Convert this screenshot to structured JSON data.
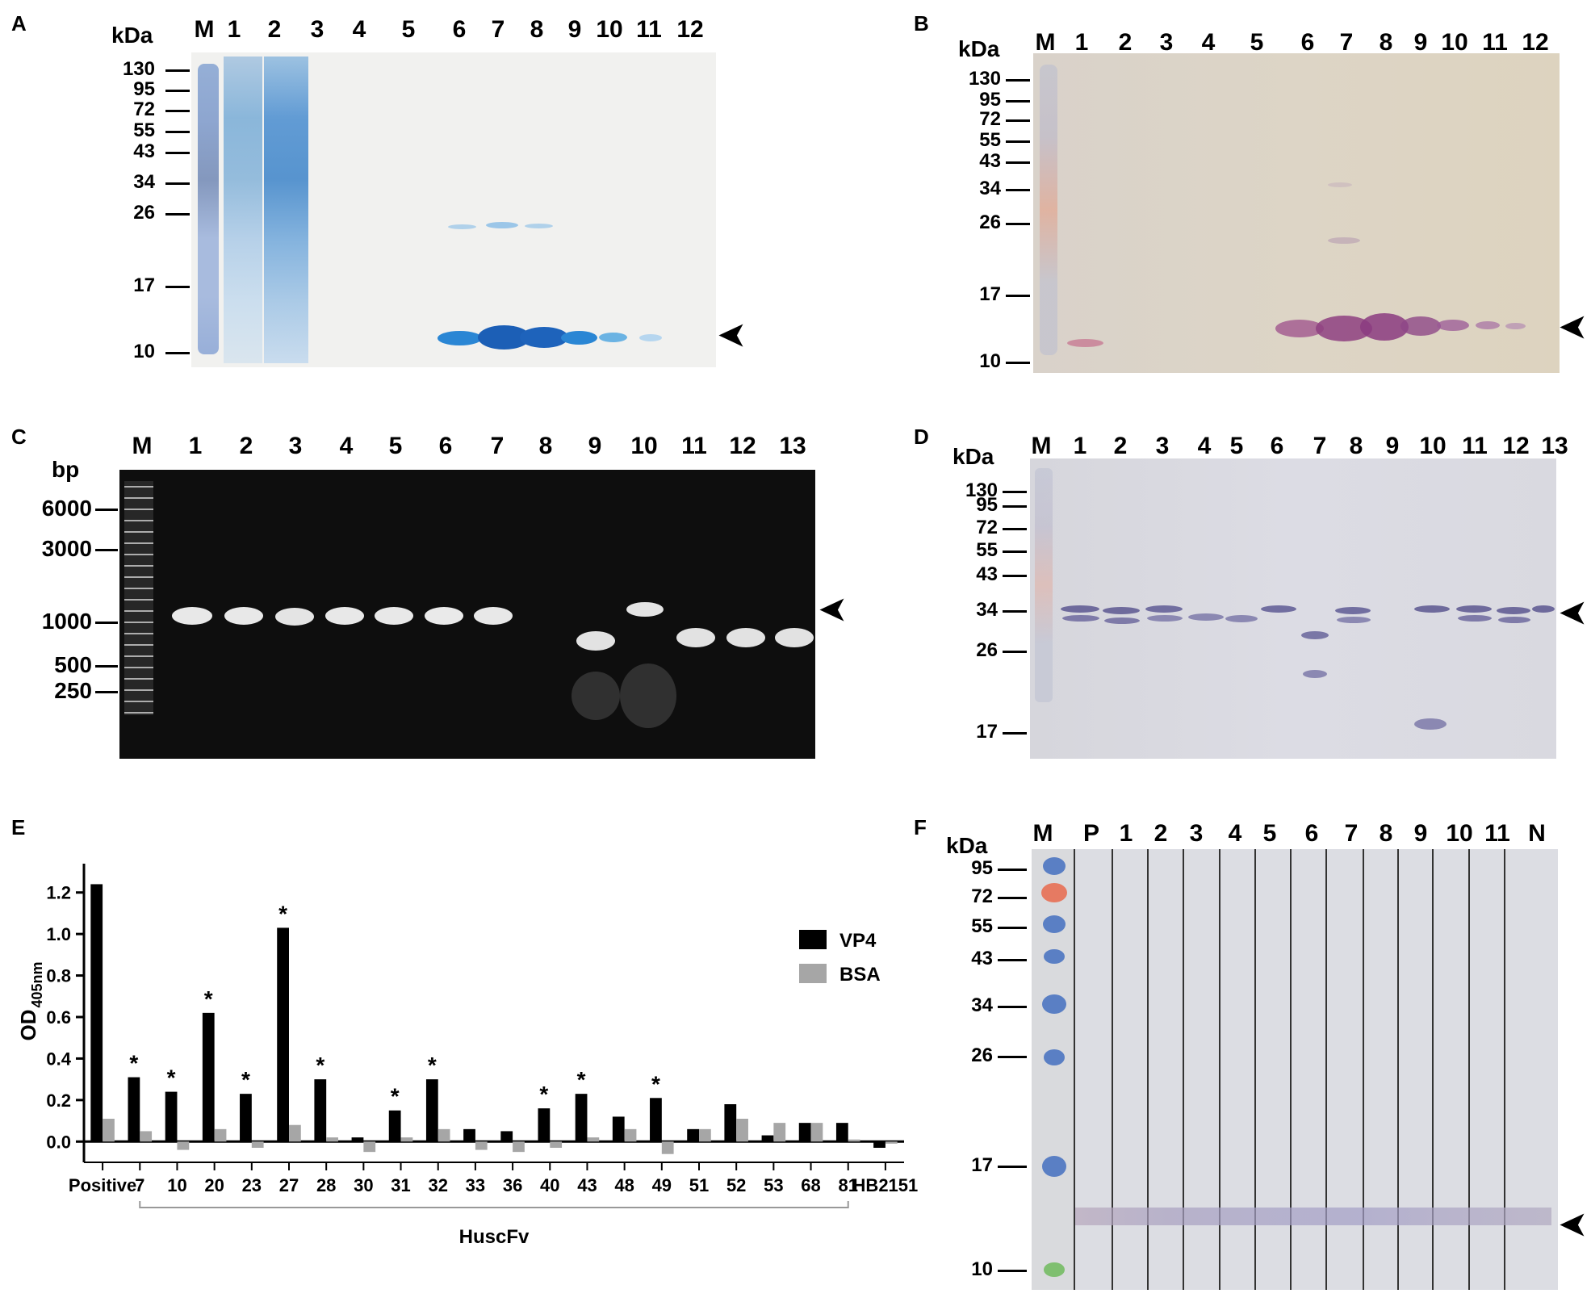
{
  "panels": {
    "A": {
      "letter": "A",
      "unit": "kDa",
      "lanes": [
        "M",
        "1",
        "2",
        "3",
        "4",
        "5",
        "6",
        "7",
        "8",
        "9",
        "10",
        "11",
        "12"
      ],
      "markers": [
        "130",
        "95",
        "72",
        "55",
        "43",
        "34",
        "26",
        "17",
        "10"
      ]
    },
    "B": {
      "letter": "B",
      "unit": "kDa",
      "lanes": [
        "M",
        "1",
        "2",
        "3",
        "4",
        "5",
        "6",
        "7",
        "8",
        "9",
        "10",
        "11",
        "12"
      ],
      "markers": [
        "130",
        "95",
        "72",
        "55",
        "43",
        "34",
        "26",
        "17",
        "10"
      ]
    },
    "C": {
      "letter": "C",
      "unit": "bp",
      "lanes": [
        "M",
        "1",
        "2",
        "3",
        "4",
        "5",
        "6",
        "7",
        "8",
        "9",
        "10",
        "11",
        "12",
        "13"
      ],
      "markers": [
        "6000",
        "3000",
        "1000",
        "500",
        "250"
      ]
    },
    "D": {
      "letter": "D",
      "unit": "kDa",
      "lanes": [
        "M",
        "1",
        "2",
        "3",
        "4",
        "5",
        "6",
        "7",
        "8",
        "9",
        "10",
        "11",
        "12",
        "13"
      ],
      "markers": [
        "130",
        "95",
        "72",
        "55",
        "43",
        "34",
        "26",
        "17"
      ]
    },
    "E": {
      "letter": "E",
      "group_label": "HuscFv"
    },
    "F": {
      "letter": "F",
      "unit": "kDa",
      "lanes": [
        "M",
        "P",
        "1",
        "2",
        "3",
        "4",
        "5",
        "6",
        "7",
        "8",
        "9",
        "10",
        "11",
        "N"
      ],
      "markers": [
        "95",
        "72",
        "55",
        "43",
        "34",
        "26",
        "17",
        "10"
      ]
    }
  },
  "arrow_glyph": "➤",
  "chart_data": {
    "type": "bar",
    "ylabel": "OD",
    "ylabel_sub": "405nm",
    "ylim": [
      -0.1,
      1.3
    ],
    "yticks": [
      "0.0",
      "0.2",
      "0.4",
      "0.6",
      "0.8",
      "1.0",
      "1.2"
    ],
    "categories": [
      "Positive",
      "7",
      "10",
      "20",
      "23",
      "27",
      "28",
      "30",
      "31",
      "32",
      "33",
      "36",
      "40",
      "43",
      "48",
      "49",
      "51",
      "52",
      "53",
      "68",
      "81",
      "HB2151"
    ],
    "series": [
      {
        "name": "VP4",
        "color": "#000000",
        "values": [
          1.24,
          0.31,
          0.24,
          0.62,
          0.23,
          1.03,
          0.3,
          0.02,
          0.15,
          0.3,
          0.06,
          0.05,
          0.16,
          0.23,
          0.12,
          0.21,
          0.06,
          0.18,
          0.03,
          0.09,
          0.09,
          -0.03
        ]
      },
      {
        "name": "BSA",
        "color": "#a6a6a6",
        "values": [
          0.11,
          0.05,
          -0.04,
          0.06,
          -0.03,
          0.08,
          0.02,
          -0.05,
          0.02,
          0.06,
          -0.04,
          -0.05,
          -0.03,
          0.02,
          0.06,
          -0.06,
          0.06,
          0.11,
          0.09,
          0.09,
          0.01,
          -0.01
        ]
      }
    ],
    "significance_mark": "*",
    "significant_categories": [
      "7",
      "10",
      "20",
      "23",
      "27",
      "28",
      "31",
      "32",
      "40",
      "43",
      "49"
    ],
    "legend_position": "right"
  }
}
